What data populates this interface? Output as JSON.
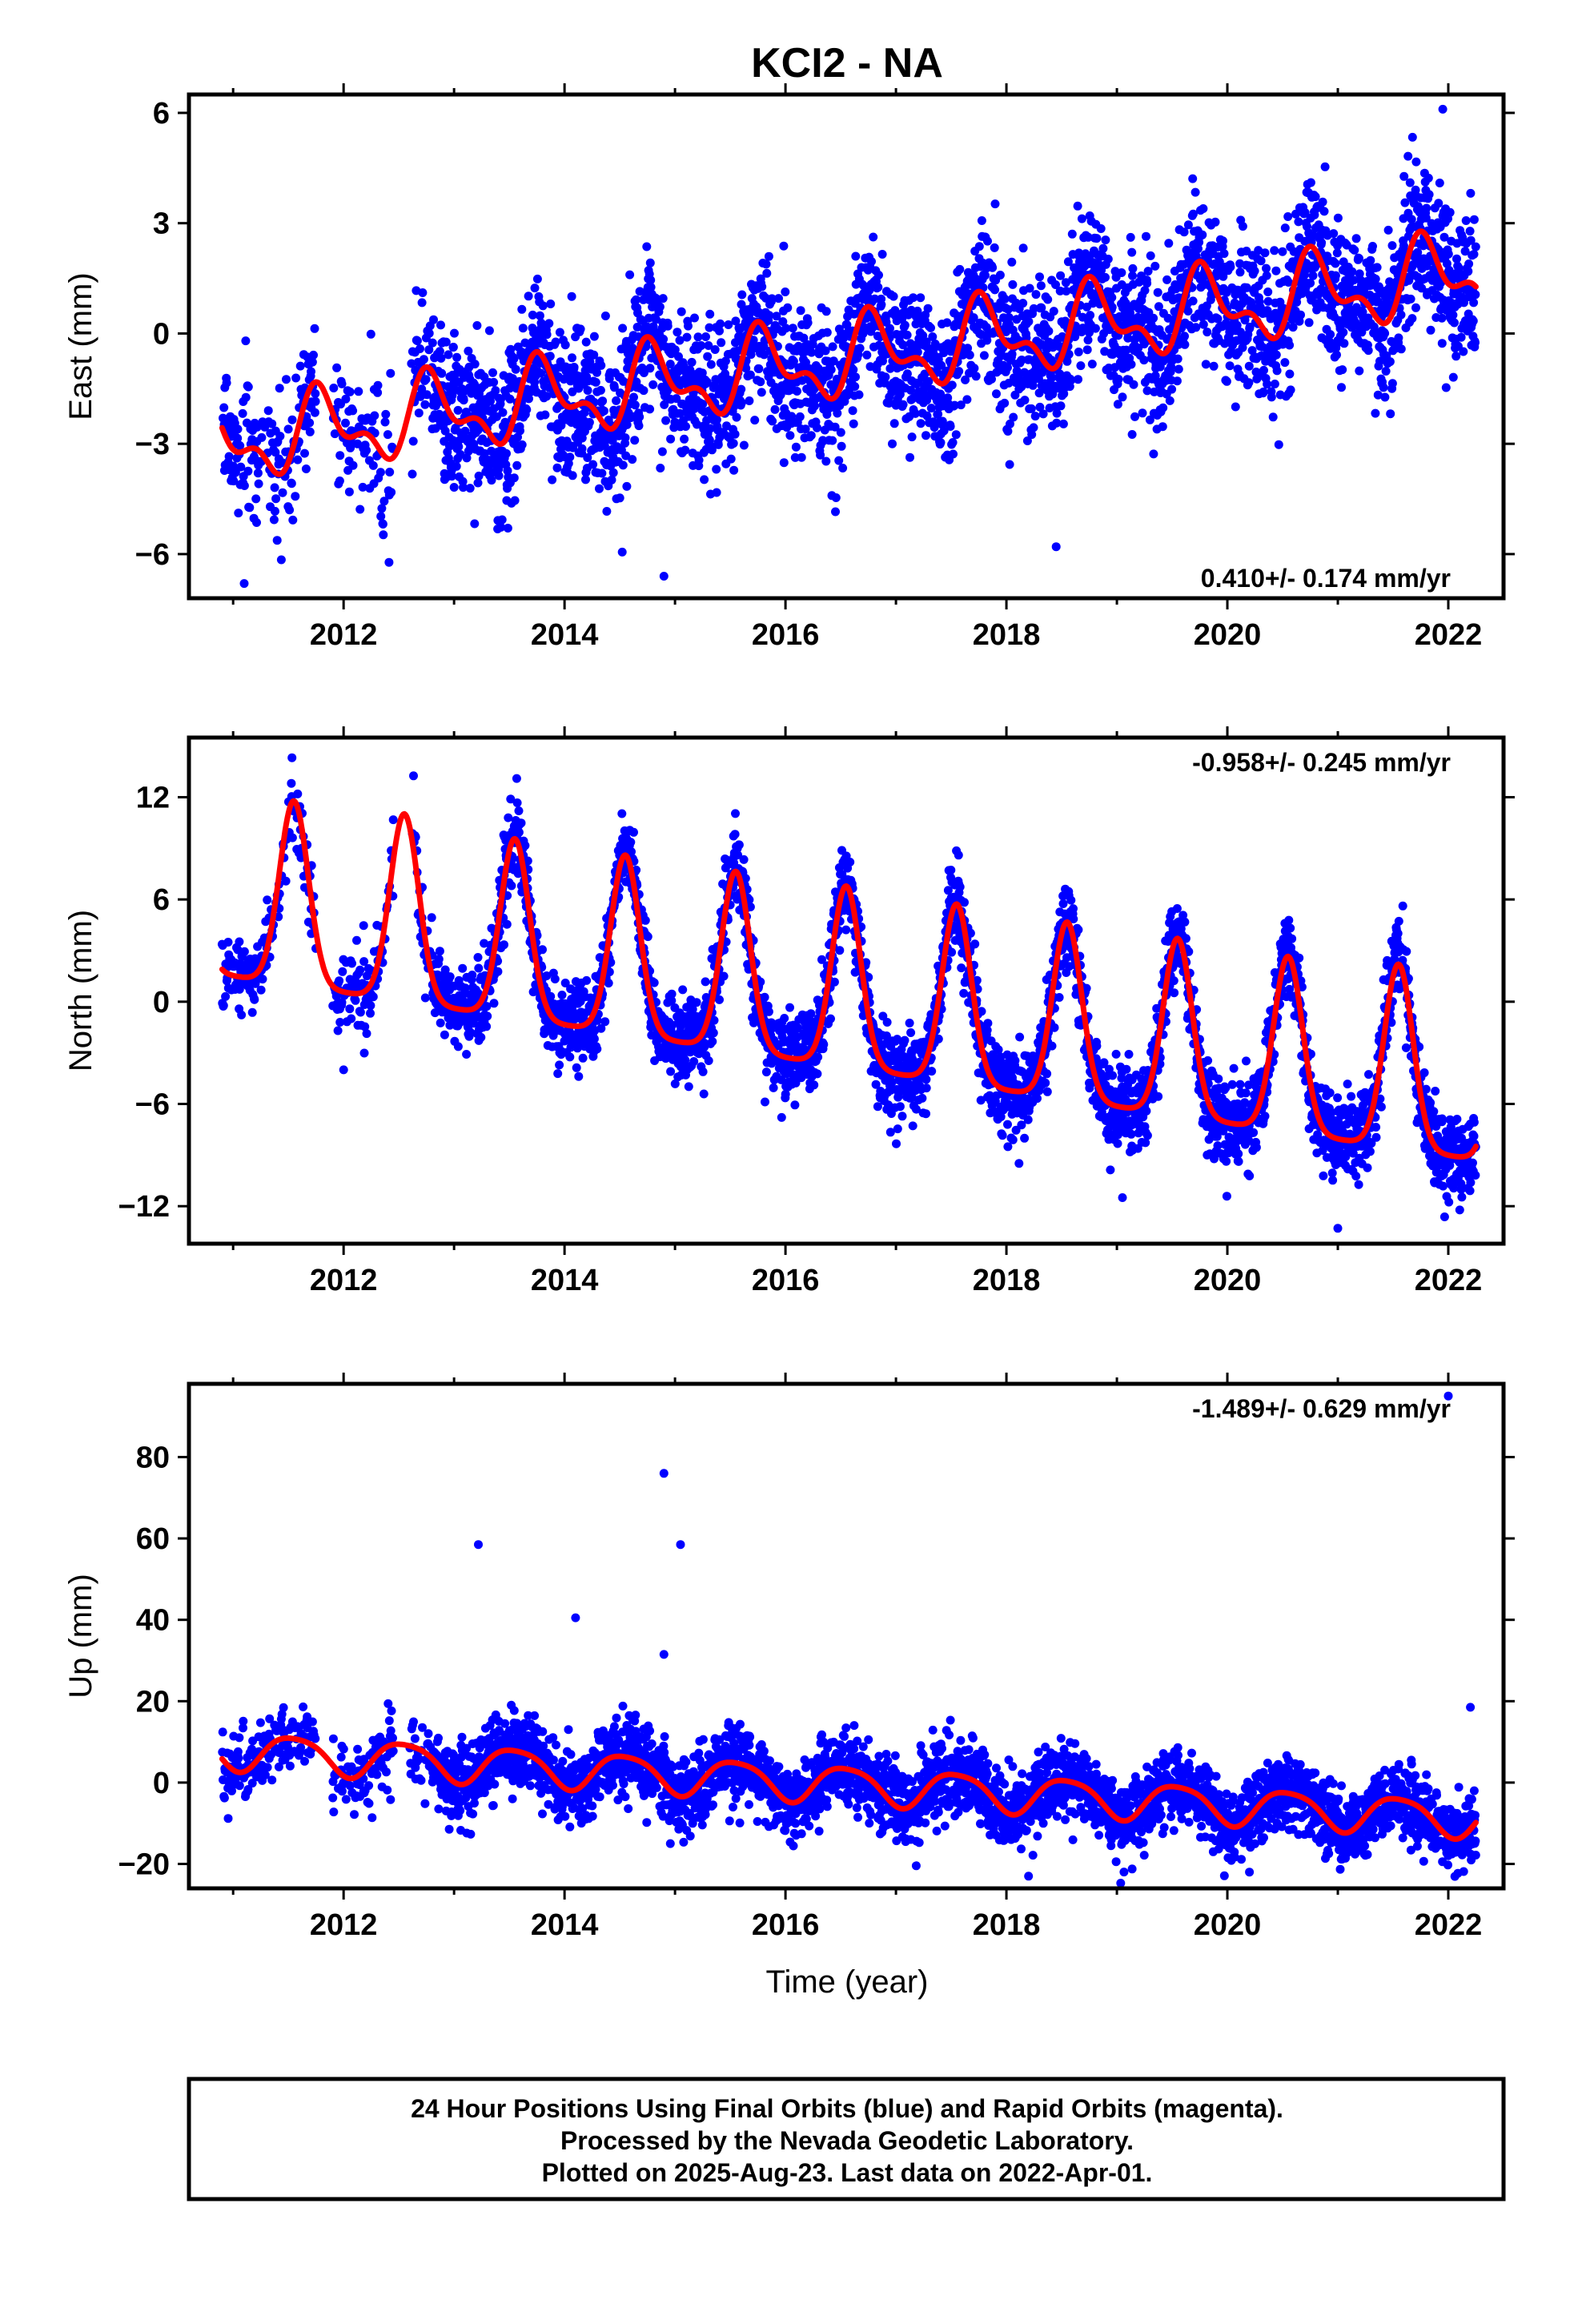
{
  "title": "KCI2 - NA",
  "xlabel": "Time (year)",
  "caption": [
    "24 Hour Positions Using Final Orbits (blue) and Rapid Orbits (magenta).",
    "Processed by the Nevada Geodetic Laboratory.",
    "Plotted on 2025-Aug-23. Last data on 2022-Apr-01."
  ],
  "colors": {
    "points": "#0000ff",
    "fit": "#ff0000",
    "frame": "#000000"
  },
  "chart_data": [
    {
      "type": "scatter",
      "ylabel": "East (mm)",
      "rate_text": "0.410+/- 0.174 mm/yr",
      "xlim": [
        2010.6,
        2022.5
      ],
      "ylim": [
        -7.2,
        6.5
      ],
      "yticks": [
        -6,
        -3,
        0,
        3,
        6
      ],
      "xticks": [
        2012,
        2014,
        2016,
        2018,
        2020,
        2022
      ],
      "trend": {
        "t0": 2010.9,
        "intercept": -3.0,
        "slope": 0.41
      },
      "annual": {
        "amplitude": 0.9,
        "phase": 0.55
      },
      "semiannual": {
        "amplitude": 0.5,
        "phase": 0.1
      },
      "scatter_sd": 1.0,
      "outliers": [
        [
          2014.9,
          -6.6
        ],
        [
          2018.45,
          -5.8
        ],
        [
          2011.1,
          -6.8
        ],
        [
          2021.95,
          6.1
        ]
      ],
      "series": [
        {
          "name": "Final Orbits",
          "kind": "points"
        },
        {
          "name": "fit",
          "kind": "line"
        }
      ]
    },
    {
      "type": "scatter",
      "ylabel": "North (mm)",
      "rate_text": "-0.958+/- 0.245 mm/yr",
      "xlim": [
        2010.6,
        2022.5
      ],
      "ylim": [
        -14.2,
        15.5
      ],
      "yticks": [
        -12,
        -6,
        0,
        6,
        12
      ],
      "xticks": [
        2012,
        2014,
        2016,
        2018,
        2020,
        2022
      ],
      "trend": {
        "t0": 2010.9,
        "intercept": 1.6,
        "slope": -0.958
      },
      "seasonal_peaks": {
        "peak_phase": 0.55,
        "peak_width": 0.13,
        "peaks": [
          10.8,
          11.0,
          10.5,
          10.5,
          10.5,
          10.6,
          10.5,
          10.4,
          10.4,
          10.3,
          10.8,
          11.2
        ]
      },
      "scatter_sd": 1.2,
      "outliers": [
        [
          2012.0,
          -4.0
        ],
        [
          2019.05,
          -11.5
        ],
        [
          2021.0,
          -13.3
        ]
      ],
      "series": [
        {
          "name": "Final Orbits",
          "kind": "points"
        },
        {
          "name": "fit",
          "kind": "line"
        }
      ]
    },
    {
      "type": "scatter",
      "ylabel": "Up (mm)",
      "rate_text": "-1.489+/- 0.629 mm/yr",
      "xlim": [
        2010.6,
        2022.5
      ],
      "ylim": [
        -26,
        98
      ],
      "yticks": [
        -20,
        0,
        20,
        40,
        60,
        80
      ],
      "xticks": [
        2012,
        2014,
        2016,
        2018,
        2020,
        2022
      ],
      "trend": {
        "t0": 2010.9,
        "intercept": 8.0,
        "slope": -1.489
      },
      "annual": {
        "amplitude": 4.5,
        "phase": 0.3
      },
      "semiannual": {
        "amplitude": 0.8,
        "phase": 0.2
      },
      "scatter_sd": 4.5,
      "outliers": [
        [
          2013.22,
          58.5
        ],
        [
          2014.1,
          40.5
        ],
        [
          2014.9,
          76.0
        ],
        [
          2015.05,
          58.5
        ],
        [
          2014.9,
          31.5
        ],
        [
          2022.0,
          95.0
        ],
        [
          2022.2,
          18.5
        ],
        [
          2018.2,
          -23.0
        ],
        [
          2020.2,
          -22.0
        ]
      ],
      "series": [
        {
          "name": "Final Orbits",
          "kind": "points"
        },
        {
          "name": "fit",
          "kind": "line"
        }
      ]
    }
  ]
}
